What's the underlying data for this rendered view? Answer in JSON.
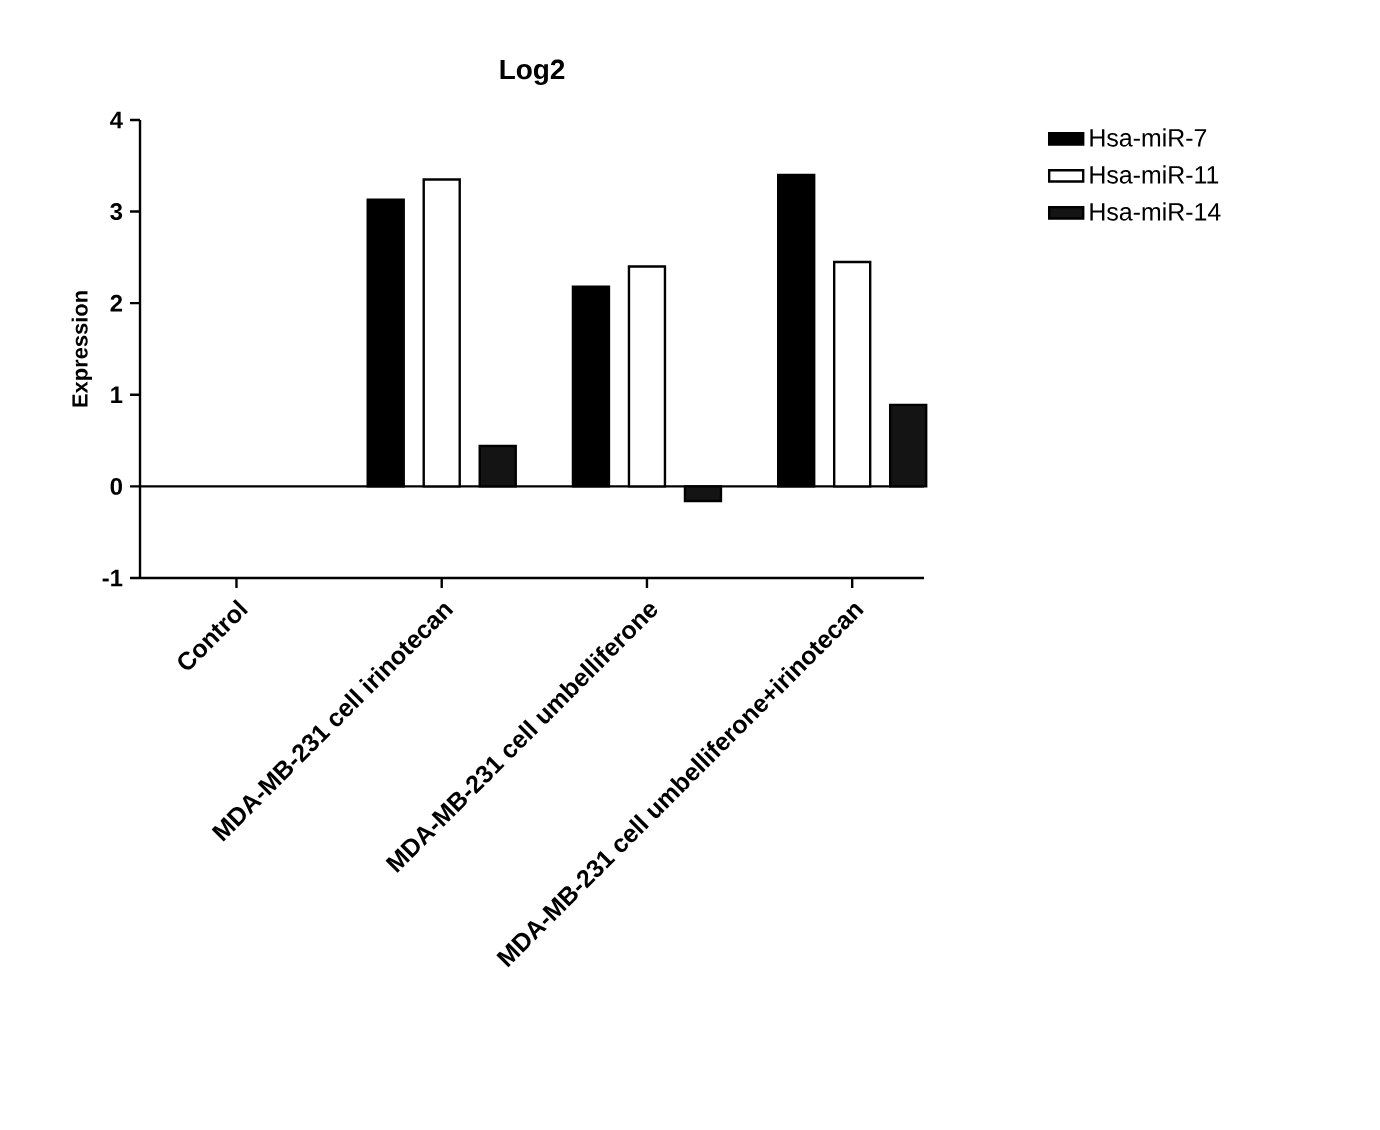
{
  "chart_data": {
    "type": "bar",
    "title": "Log2",
    "ylabel": "Expression",
    "categories": [
      "Control",
      "MDA-MB-231 cell irinotecan",
      "MDA-MB-231 cell umbelliferone",
      "MDA-MB-231 cell umbelliferone+irinotecan"
    ],
    "series": [
      {
        "name": "Hsa-miR-7",
        "color": "#000000",
        "values": [
          null,
          3.13,
          2.18,
          3.4
        ]
      },
      {
        "name": "Hsa-miR-11",
        "color": "#ffffff",
        "values": [
          null,
          3.35,
          2.4,
          2.45
        ]
      },
      {
        "name": "Hsa-miR-14",
        "color": "#141414",
        "values": [
          null,
          0.44,
          -0.16,
          0.89
        ]
      }
    ],
    "ylim": [
      -1,
      4
    ],
    "yticks": [
      -1,
      0,
      1,
      2,
      3,
      4
    ],
    "ref_lines": [
      {
        "axis": "y",
        "value": 0
      }
    ],
    "legend": "top right",
    "grid": false
  }
}
